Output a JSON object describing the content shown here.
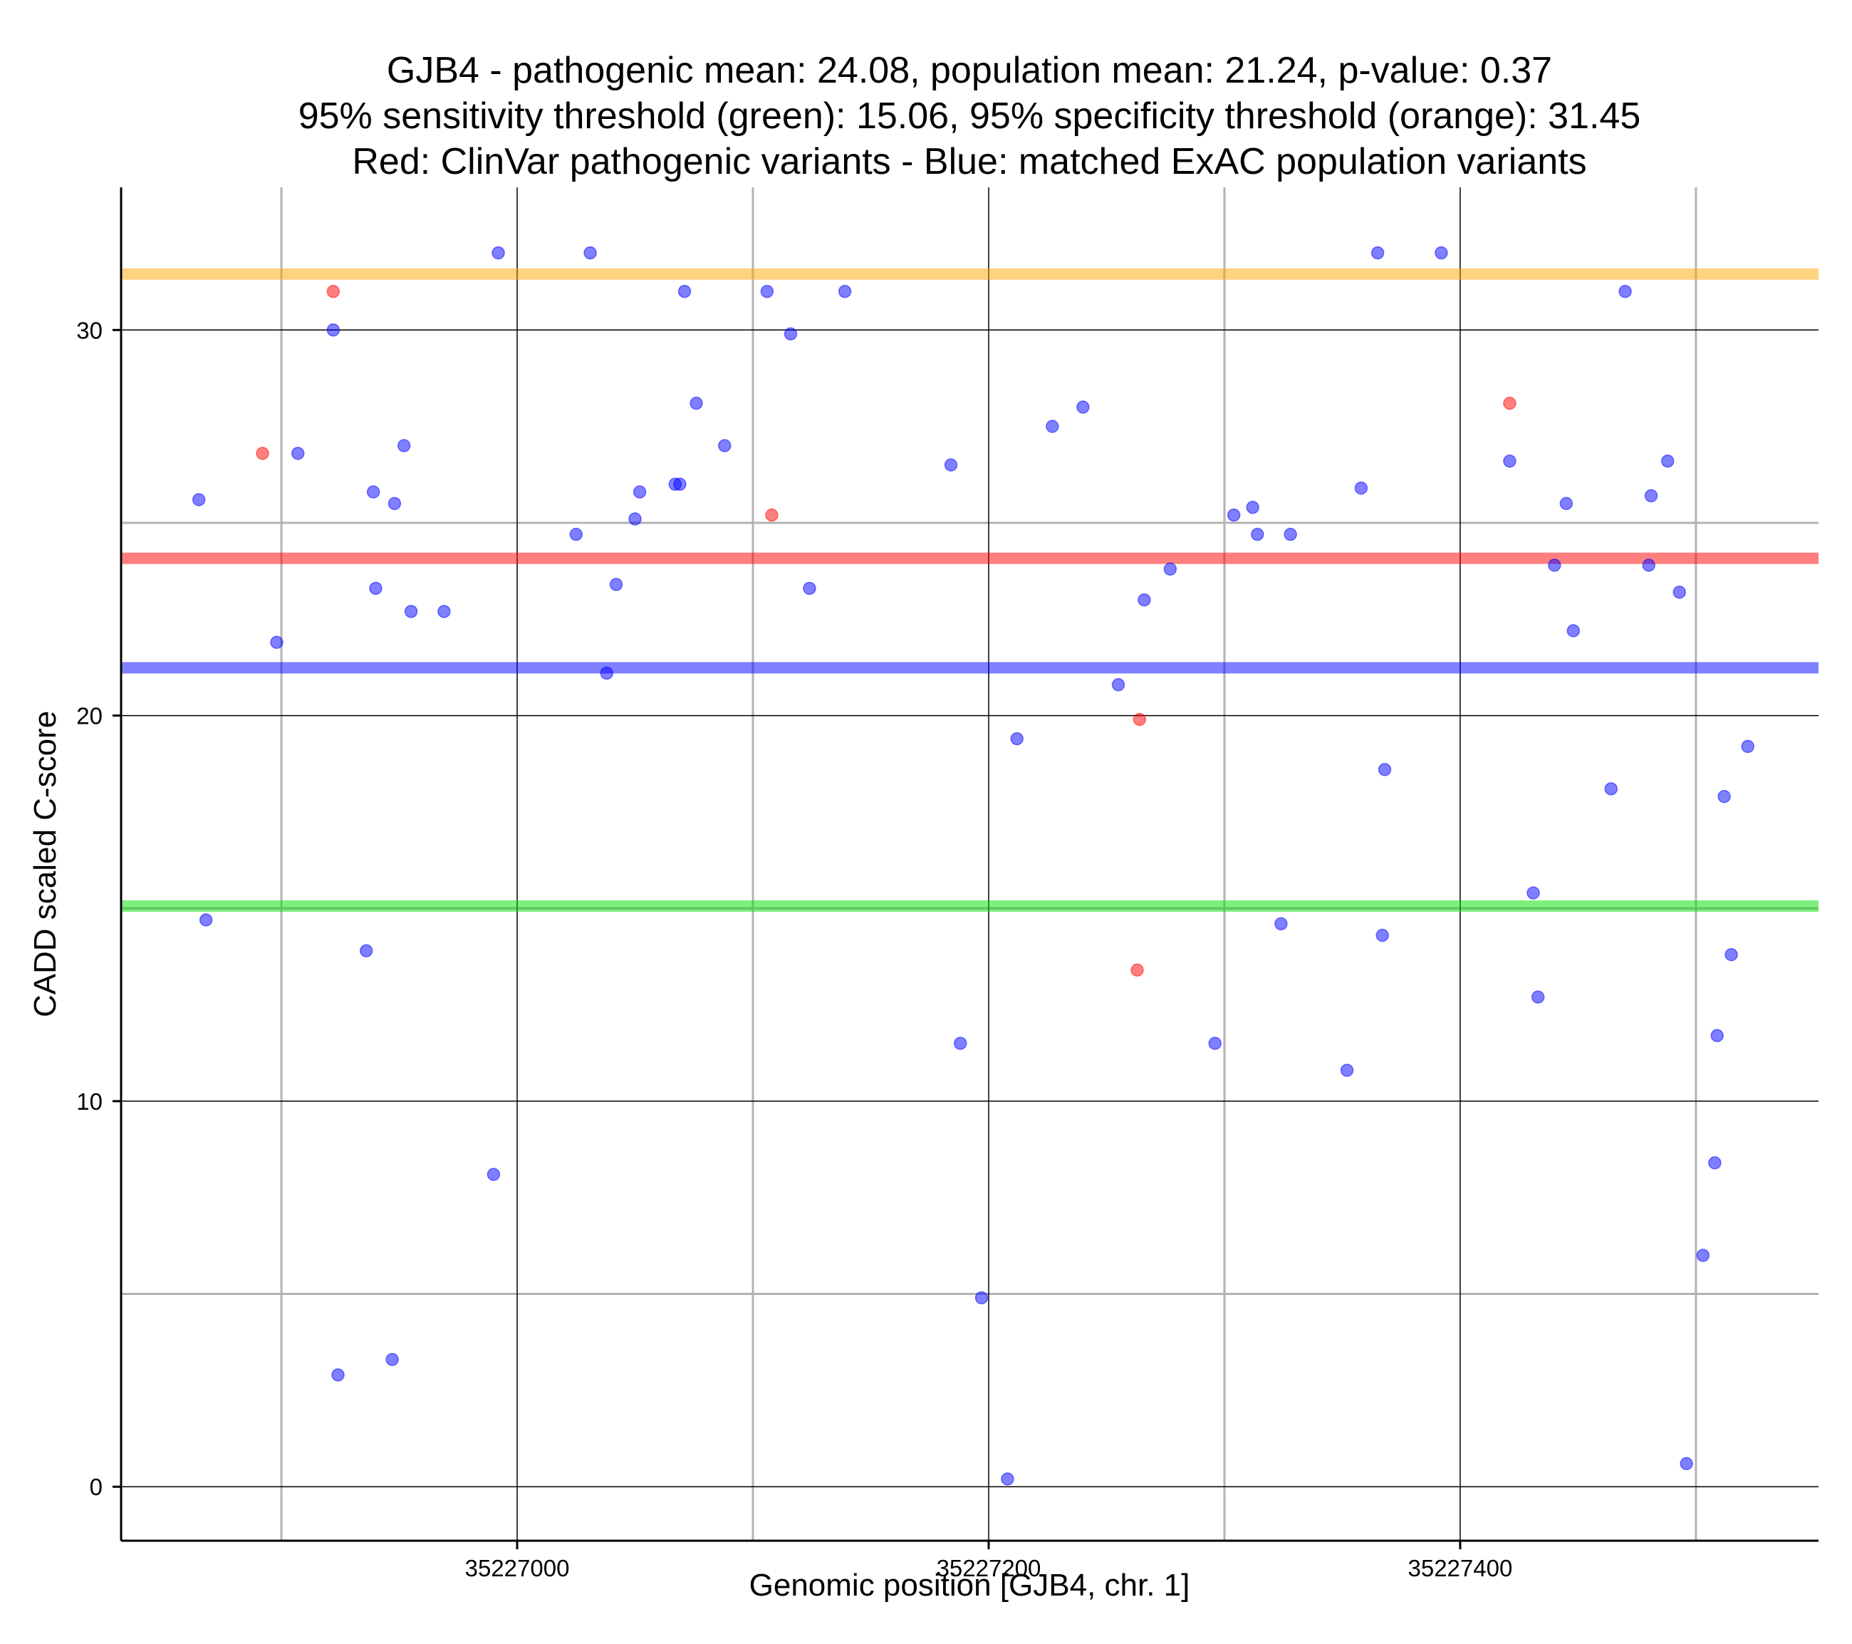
{
  "chart_data": {
    "type": "scatter",
    "title_lines": [
      "GJB4 - pathogenic mean: 24.08, population mean: 21.24, p-value: 0.37",
      "95% sensitivity threshold (green): 15.06, 95% specificity threshold (orange): 31.45",
      "Red: ClinVar pathogenic variants - Blue: matched ExAC population variants"
    ],
    "xlabel": "Genomic position [GJB4, chr. 1]",
    "ylabel": "CADD scaled C-score",
    "xlim": [
      35226832,
      35227552
    ],
    "ylim": [
      -1.4,
      33.7
    ],
    "x_ticks": [
      35227000,
      35227200,
      35227400
    ],
    "x_tick_labels": [
      "35227000",
      "35227200",
      "35227400"
    ],
    "x_minor_gridlines": [
      35226900,
      35227100,
      35227300,
      35227500
    ],
    "y_ticks": [
      0,
      10,
      20,
      30
    ],
    "y_tick_labels": [
      "0",
      "10",
      "20",
      "30"
    ],
    "y_minor_gridlines": [
      5,
      15,
      25
    ],
    "colors": {
      "pathogenic": "#ff0000",
      "population": "#0000ff",
      "sensitivity": "#00dd00",
      "specificity": "#ffa500"
    },
    "reference_lines": [
      {
        "name": "specificity-threshold",
        "y": 31.45,
        "color": "#ffa500"
      },
      {
        "name": "pathogenic-mean",
        "y": 24.08,
        "color": "#ff0000"
      },
      {
        "name": "population-mean",
        "y": 21.24,
        "color": "#0000ff"
      },
      {
        "name": "sensitivity-threshold",
        "y": 15.06,
        "color": "#00dd00"
      }
    ],
    "series": [
      {
        "name": "ClinVar pathogenic variants",
        "color": "#ff0000",
        "points": [
          {
            "x": 35226892,
            "y": 26.8
          },
          {
            "x": 35226922,
            "y": 31.0
          },
          {
            "x": 35227108,
            "y": 25.2
          },
          {
            "x": 35227264,
            "y": 19.9
          },
          {
            "x": 35227263,
            "y": 13.4
          },
          {
            "x": 35227421,
            "y": 28.1
          }
        ]
      },
      {
        "name": "matched ExAC population variants",
        "color": "#0000ff",
        "points": [
          {
            "x": 35226865,
            "y": 25.6
          },
          {
            "x": 35226868,
            "y": 14.7
          },
          {
            "x": 35226898,
            "y": 21.9
          },
          {
            "x": 35226907,
            "y": 26.8
          },
          {
            "x": 35226922,
            "y": 30.0
          },
          {
            "x": 35226924,
            "y": 2.9
          },
          {
            "x": 35226936,
            "y": 13.9
          },
          {
            "x": 35226939,
            "y": 25.8
          },
          {
            "x": 35226940,
            "y": 23.3
          },
          {
            "x": 35226947,
            "y": 3.3
          },
          {
            "x": 35226948,
            "y": 25.5
          },
          {
            "x": 35226952,
            "y": 27.0
          },
          {
            "x": 35226955,
            "y": 22.7
          },
          {
            "x": 35226969,
            "y": 22.7
          },
          {
            "x": 35226990,
            "y": 8.1
          },
          {
            "x": 35226992,
            "y": 32.0
          },
          {
            "x": 35227025,
            "y": 24.7
          },
          {
            "x": 35227031,
            "y": 32.0
          },
          {
            "x": 35227038,
            "y": 21.1
          },
          {
            "x": 35227042,
            "y": 23.4
          },
          {
            "x": 35227050,
            "y": 25.1
          },
          {
            "x": 35227052,
            "y": 25.8
          },
          {
            "x": 35227067,
            "y": 26.0
          },
          {
            "x": 35227069,
            "y": 26.0
          },
          {
            "x": 35227071,
            "y": 31.0
          },
          {
            "x": 35227076,
            "y": 28.1
          },
          {
            "x": 35227088,
            "y": 27.0
          },
          {
            "x": 35227106,
            "y": 31.0
          },
          {
            "x": 35227116,
            "y": 29.9
          },
          {
            "x": 35227124,
            "y": 23.3
          },
          {
            "x": 35227139,
            "y": 31.0
          },
          {
            "x": 35227184,
            "y": 26.5
          },
          {
            "x": 35227188,
            "y": 11.5
          },
          {
            "x": 35227197,
            "y": 4.9
          },
          {
            "x": 35227208,
            "y": 0.2
          },
          {
            "x": 35227212,
            "y": 19.4
          },
          {
            "x": 35227227,
            "y": 27.5
          },
          {
            "x": 35227240,
            "y": 28.0
          },
          {
            "x": 35227255,
            "y": 20.8
          },
          {
            "x": 35227266,
            "y": 23.0
          },
          {
            "x": 35227277,
            "y": 23.8
          },
          {
            "x": 35227296,
            "y": 11.5
          },
          {
            "x": 35227304,
            "y": 25.2
          },
          {
            "x": 35227312,
            "y": 25.4
          },
          {
            "x": 35227314,
            "y": 24.7
          },
          {
            "x": 35227324,
            "y": 14.6
          },
          {
            "x": 35227328,
            "y": 24.7
          },
          {
            "x": 35227352,
            "y": 10.8
          },
          {
            "x": 35227358,
            "y": 25.9
          },
          {
            "x": 35227365,
            "y": 32.0
          },
          {
            "x": 35227367,
            "y": 14.3
          },
          {
            "x": 35227368,
            "y": 18.6
          },
          {
            "x": 35227392,
            "y": 32.0
          },
          {
            "x": 35227421,
            "y": 26.6
          },
          {
            "x": 35227431,
            "y": 15.4
          },
          {
            "x": 35227433,
            "y": 12.7
          },
          {
            "x": 35227440,
            "y": 23.9
          },
          {
            "x": 35227445,
            "y": 25.5
          },
          {
            "x": 35227448,
            "y": 22.2
          },
          {
            "x": 35227464,
            "y": 18.1
          },
          {
            "x": 35227470,
            "y": 31.0
          },
          {
            "x": 35227480,
            "y": 23.9
          },
          {
            "x": 35227481,
            "y": 25.7
          },
          {
            "x": 35227488,
            "y": 26.6
          },
          {
            "x": 35227493,
            "y": 23.2
          },
          {
            "x": 35227496,
            "y": 0.6
          },
          {
            "x": 35227503,
            "y": 6.0
          },
          {
            "x": 35227508,
            "y": 8.4
          },
          {
            "x": 35227509,
            "y": 11.7
          },
          {
            "x": 35227512,
            "y": 17.9
          },
          {
            "x": 35227515,
            "y": 13.8
          },
          {
            "x": 35227522,
            "y": 19.2
          }
        ]
      }
    ]
  }
}
